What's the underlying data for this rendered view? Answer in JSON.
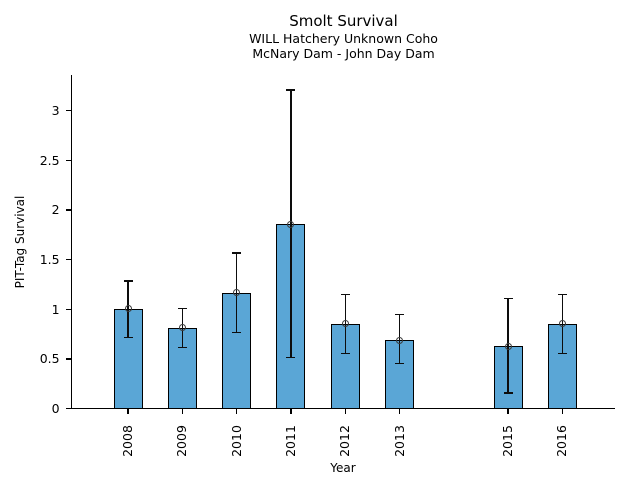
{
  "header": {
    "title": "Smolt Survival",
    "subtitle1": "WILL Hatchery Unknown Coho",
    "subtitle2": "McNary Dam - John Day Dam"
  },
  "chart_data": {
    "type": "bar",
    "title": "Smolt Survival",
    "subtitles": [
      "WILL Hatchery Unknown Coho",
      "McNary Dam - John Day Dam"
    ],
    "xlabel": "Year",
    "ylabel": "PIT-Tag Survival",
    "categories": [
      "2008",
      "2009",
      "2010",
      "2011",
      "2012",
      "2013",
      "2015",
      "2016"
    ],
    "x_numeric": [
      2008,
      2009,
      2010,
      2011,
      2012,
      2013,
      2015,
      2016
    ],
    "values": [
      1.0,
      0.81,
      1.16,
      1.85,
      0.85,
      0.68,
      0.62,
      0.85
    ],
    "error_low": [
      0.71,
      0.61,
      0.76,
      0.51,
      0.55,
      0.45,
      0.15,
      0.55
    ],
    "error_high": [
      1.28,
      1.0,
      1.56,
      3.2,
      1.14,
      0.94,
      1.1,
      1.14
    ],
    "note_missing_year": "2014",
    "yticks": [
      0,
      0.5,
      1,
      1.5,
      2,
      2.5,
      3
    ],
    "ylim": [
      0,
      3.35
    ],
    "xlim_years": [
      2007,
      2017
    ],
    "grid": false,
    "legend": "none",
    "bar_color": "#5aa6d6",
    "bar_edge_color": "#000000",
    "errorbar_color": "#0d0d0d",
    "marker": "open-circle",
    "marker_color": "#3a3a3a"
  }
}
